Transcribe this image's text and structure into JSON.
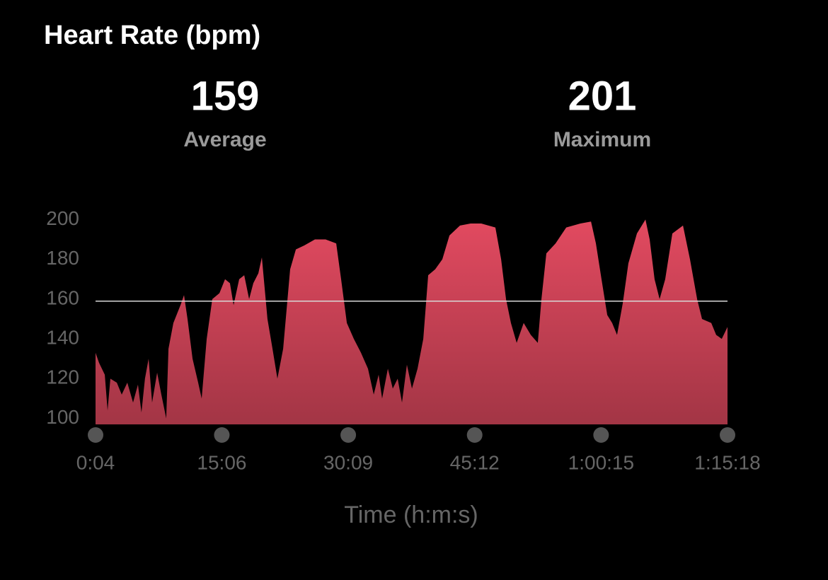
{
  "chart_data": {
    "type": "area",
    "title": "Heart Rate (bpm)",
    "stats": [
      {
        "value": 159,
        "label": "Average"
      },
      {
        "value": 201,
        "label": "Maximum"
      }
    ],
    "x_label": "Time (h:m:s)",
    "xlim": [
      4,
      4518
    ],
    "xticks": [
      {
        "value": 4,
        "label": "0:04"
      },
      {
        "value": 906,
        "label": "15:06"
      },
      {
        "value": 1809,
        "label": "30:09"
      },
      {
        "value": 2712,
        "label": "45:12"
      },
      {
        "value": 3615,
        "label": "1:00:15"
      },
      {
        "value": 4518,
        "label": "1:15:18"
      }
    ],
    "ylim": [
      97,
      203
    ],
    "yticks": [
      100,
      120,
      140,
      160,
      180,
      200
    ],
    "x": [
      4,
      29,
      70,
      90,
      110,
      156,
      191,
      231,
      272,
      307,
      332,
      357,
      383,
      408,
      444,
      474,
      509,
      525,
      560,
      611,
      636,
      661,
      697,
      737,
      762,
      798,
      838,
      889,
      929,
      964,
      990,
      1030,
      1066,
      1101,
      1131,
      1167,
      1192,
      1232,
      1268,
      1303,
      1344,
      1394,
      1435,
      1495,
      1571,
      1647,
      1723,
      1758,
      1799,
      1849,
      1900,
      1950,
      1991,
      2026,
      2051,
      2092,
      2127,
      2162,
      2193,
      2228,
      2264,
      2304,
      2345,
      2380,
      2430,
      2481,
      2532,
      2607,
      2683,
      2759,
      2860,
      2901,
      2936,
      2971,
      3012,
      3062,
      3113,
      3163,
      3189,
      3224,
      3290,
      3366,
      3467,
      3543,
      3578,
      3618,
      3659,
      3694,
      3729,
      3770,
      3810,
      3871,
      3932,
      3962,
      3997,
      4033,
      4073,
      4124,
      4200,
      4250,
      4301,
      4336,
      4402,
      4437,
      4477,
      4518
    ],
    "series": [
      {
        "name": "Heart Rate",
        "color": "#e24a60",
        "values": [
          133,
          128,
          122,
          104,
          120,
          118,
          112,
          118,
          108,
          117,
          103,
          120,
          130,
          108,
          123,
          112,
          100,
          135,
          148,
          157,
          162,
          150,
          130,
          118,
          110,
          140,
          160,
          163,
          170,
          168,
          157,
          170,
          172,
          160,
          168,
          173,
          181,
          150,
          135,
          120,
          135,
          175,
          185,
          187,
          190,
          190,
          188,
          170,
          148,
          140,
          133,
          125,
          112,
          122,
          110,
          125,
          115,
          120,
          108,
          127,
          115,
          125,
          140,
          172,
          175,
          180,
          192,
          197,
          198,
          198,
          196,
          180,
          160,
          148,
          138,
          148,
          142,
          138,
          160,
          183,
          188,
          196,
          198,
          199,
          188,
          170,
          152,
          148,
          142,
          158,
          178,
          193,
          200,
          190,
          170,
          160,
          170,
          193,
          197,
          180,
          160,
          150,
          148,
          142,
          140,
          146
        ]
      }
    ]
  }
}
